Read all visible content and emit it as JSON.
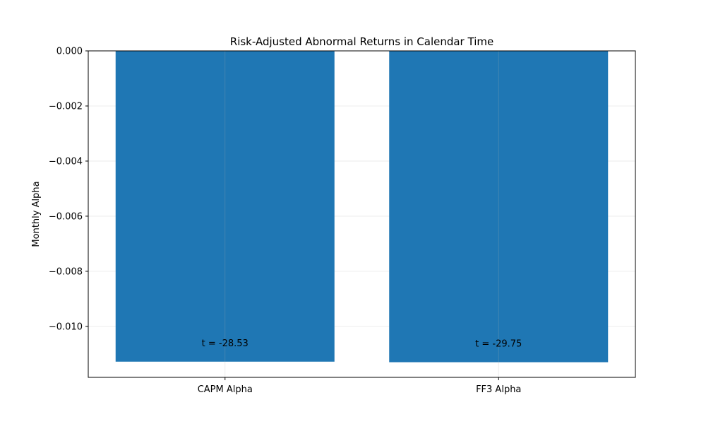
{
  "chart_data": {
    "type": "bar",
    "title": "Risk-Adjusted Abnormal Returns in Calendar Time",
    "xlabel": "",
    "ylabel": "Monthly Alpha",
    "categories": [
      "CAPM Alpha",
      "FF3 Alpha"
    ],
    "values": [
      -0.01128,
      -0.0113
    ],
    "annotations": [
      "t = -28.53",
      "t = -29.75"
    ],
    "ylim": [
      -0.01185,
      0.0
    ],
    "yticks": [
      0.0,
      -0.002,
      -0.004,
      -0.006,
      -0.008,
      -0.01
    ],
    "ytick_labels": [
      "0.000",
      "−0.002",
      "−0.004",
      "−0.006",
      "−0.008",
      "−0.010"
    ],
    "grid": true,
    "bar_color": "#1f77b4"
  }
}
